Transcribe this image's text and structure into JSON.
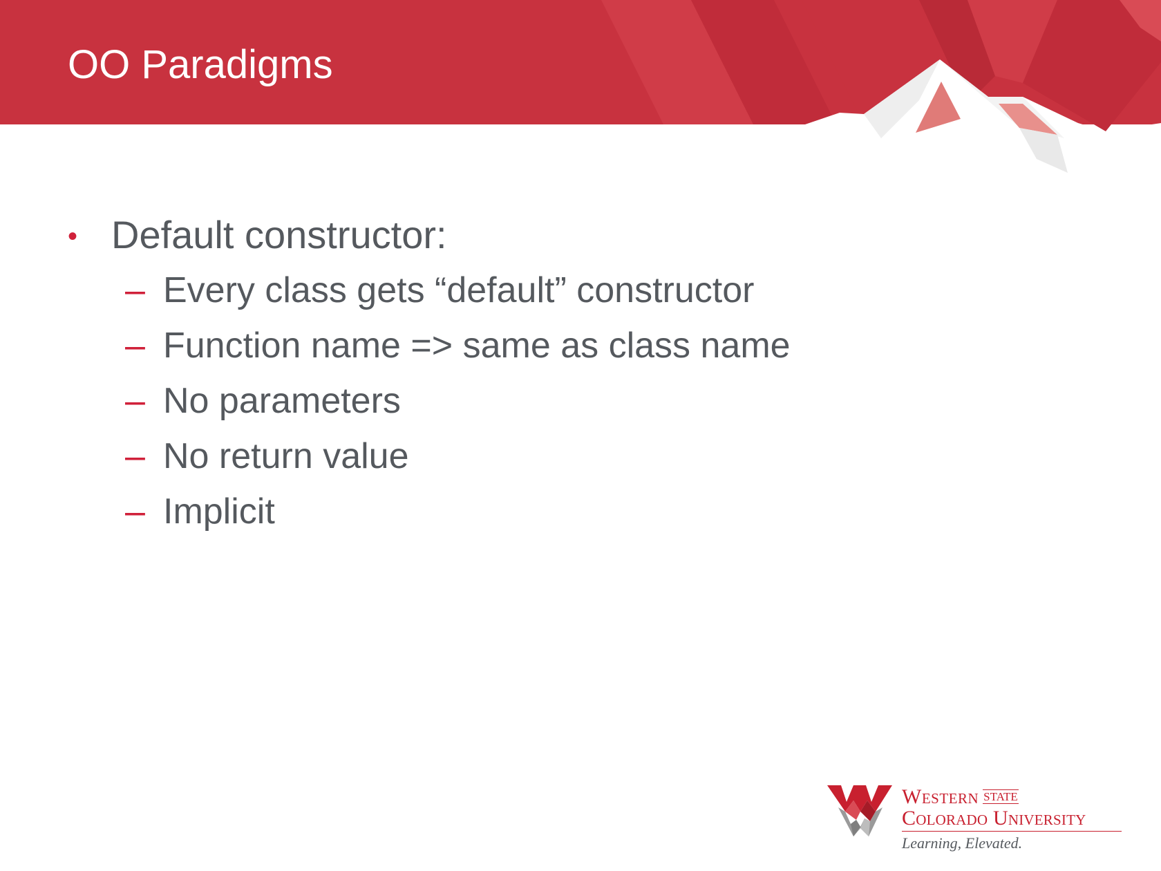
{
  "slide": {
    "title": "OO Paradigms",
    "bullets": [
      {
        "text": "Default constructor:",
        "sub": [
          "Every class gets “default” constructor",
          "Function name => same as class name",
          "No parameters",
          "No return value",
          "Implicit"
        ]
      }
    ],
    "bullet_glyph": "•",
    "sub_glyph": "–"
  },
  "logo": {
    "name_line1": "Western",
    "name_state": "STATE",
    "name_line2": "Colorado University",
    "tagline": "Learning, Elevated.",
    "mark_icon": "mountain-w-logo-icon"
  },
  "colors": {
    "accent_red": "#c8323f",
    "text_gray": "#55595e",
    "bullet_red": "#d0213a"
  }
}
